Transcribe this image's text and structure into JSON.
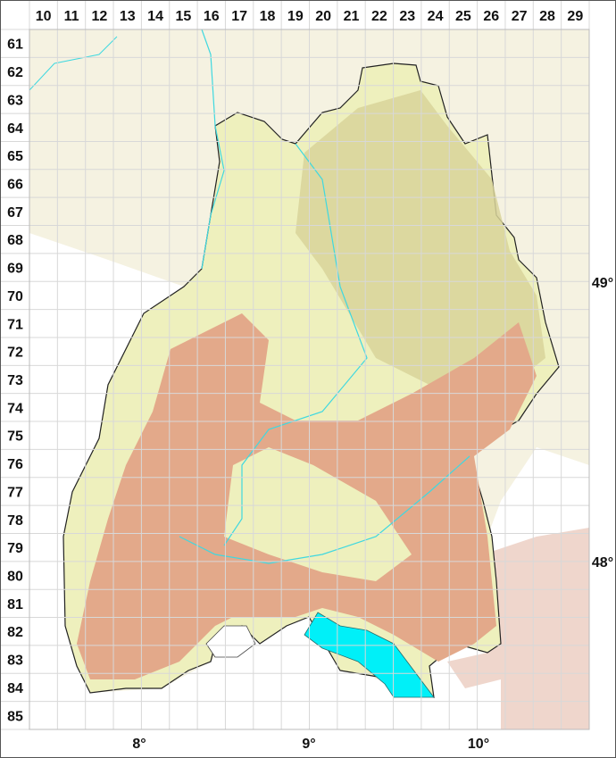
{
  "grid": {
    "columns": [
      "10",
      "11",
      "12",
      "13",
      "14",
      "15",
      "16",
      "17",
      "18",
      "19",
      "20",
      "21",
      "22",
      "23",
      "24",
      "25",
      "26",
      "27",
      "28",
      "29"
    ],
    "rows": [
      "61",
      "62",
      "63",
      "64",
      "65",
      "66",
      "67",
      "68",
      "69",
      "70",
      "71",
      "72",
      "73",
      "74",
      "75",
      "76",
      "77",
      "78",
      "79",
      "80",
      "81",
      "82",
      "83",
      "84",
      "85"
    ]
  },
  "longitude_labels": [
    "8°",
    "9°",
    "10°"
  ],
  "latitude_labels": [
    "49°",
    "48°"
  ],
  "colors": {
    "lowland": "#f1f3c4",
    "midland": "#d9d49a",
    "upland": "#e3a98a",
    "lake": "#00f0f8",
    "river": "#3fd8e0",
    "outside": "#f5f2e2",
    "grid": "#dddddd"
  }
}
